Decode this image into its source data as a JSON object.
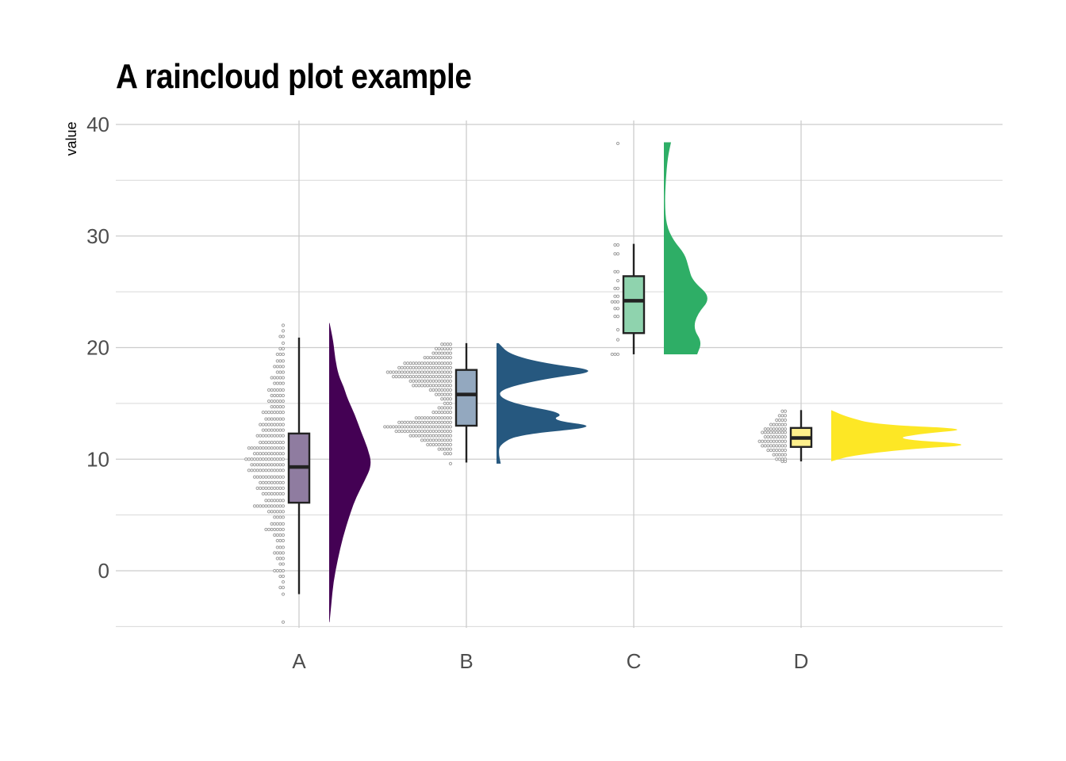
{
  "chart_data": {
    "type": "raincloud",
    "title": "A raincloud plot example",
    "xlabel": "",
    "ylabel": "value",
    "categories": [
      "A",
      "B",
      "C",
      "D"
    ],
    "yticks": [
      0,
      10,
      20,
      30,
      40
    ],
    "ylim": [
      -5,
      40
    ],
    "grid": true,
    "legend": "none",
    "colors": {
      "A": {
        "cloud": "#440154",
        "box": "#8F7CA0"
      },
      "B": {
        "cloud": "#26587F",
        "box": "#93A8BF"
      },
      "C": {
        "cloud": "#2EAE66",
        "box": "#8FD3AE"
      },
      "D": {
        "cloud": "#FDE725",
        "box": "#FDEF8C"
      },
      "points": "#9e9e9e",
      "grid": "#d9d9d9"
    },
    "series": [
      {
        "group": "A",
        "box": {
          "whisker_low": -2.1,
          "q1": 6.1,
          "median": 9.3,
          "q3": 12.3,
          "whisker_high": 20.9
        },
        "min": -4.6,
        "max": 22.2,
        "density": [
          [
            -4.6,
            0.01
          ],
          [
            -3,
            0.05
          ],
          [
            -1,
            0.1
          ],
          [
            1,
            0.2
          ],
          [
            3,
            0.32
          ],
          [
            5,
            0.48
          ],
          [
            6.5,
            0.62
          ],
          [
            8,
            0.82
          ],
          [
            9.5,
            1.0
          ],
          [
            11,
            0.9
          ],
          [
            12.5,
            0.74
          ],
          [
            14,
            0.6
          ],
          [
            15.5,
            0.42
          ],
          [
            16.5,
            0.34
          ],
          [
            17.5,
            0.22
          ],
          [
            19,
            0.14
          ],
          [
            20.5,
            0.1
          ],
          [
            22.2,
            0.01
          ]
        ]
      },
      {
        "group": "B",
        "box": {
          "whisker_low": 9.7,
          "q1": 13.0,
          "median": 15.8,
          "q3": 18.0,
          "whisker_high": 20.4
        },
        "min": 9.6,
        "max": 20.4,
        "density": [
          [
            9.6,
            0.04
          ],
          [
            10.5,
            0.02
          ],
          [
            11.3,
            0.03
          ],
          [
            12.2,
            0.2
          ],
          [
            12.9,
            1.0
          ],
          [
            13.5,
            0.5
          ],
          [
            14.1,
            0.65
          ],
          [
            14.9,
            0.2
          ],
          [
            15.6,
            0.02
          ],
          [
            16.3,
            0.05
          ],
          [
            17.2,
            0.45
          ],
          [
            17.9,
            1.0
          ],
          [
            18.6,
            0.45
          ],
          [
            19.4,
            0.12
          ],
          [
            20.4,
            0.02
          ]
        ]
      },
      {
        "group": "C",
        "box": {
          "whisker_low": 19.4,
          "q1": 21.3,
          "median": 24.2,
          "q3": 26.4,
          "whisker_high": 29.3
        },
        "min": 19.4,
        "max": 38.4,
        "density": [
          [
            19.4,
            0.7
          ],
          [
            20.5,
            0.8
          ],
          [
            21.7,
            0.62
          ],
          [
            23,
            0.7
          ],
          [
            24.5,
            1.0
          ],
          [
            26,
            0.6
          ],
          [
            27.2,
            0.52
          ],
          [
            28.4,
            0.44
          ],
          [
            29.6,
            0.2
          ],
          [
            31,
            0.05
          ],
          [
            33,
            0.02
          ],
          [
            35,
            0.04
          ],
          [
            37,
            0.08
          ],
          [
            38.4,
            0.15
          ]
        ]
      },
      {
        "group": "D",
        "box": {
          "whisker_low": 9.8,
          "q1": 11.1,
          "median": 11.9,
          "q3": 12.8,
          "whisker_high": 14.4
        },
        "min": 9.8,
        "max": 14.4,
        "density": [
          [
            9.8,
            0.0
          ],
          [
            10.3,
            0.13
          ],
          [
            10.9,
            0.5
          ],
          [
            11.3,
            1.0
          ],
          [
            11.8,
            0.4
          ],
          [
            12.3,
            0.6
          ],
          [
            12.7,
            0.95
          ],
          [
            13.1,
            0.3
          ],
          [
            13.8,
            0.1
          ],
          [
            14.4,
            0.0
          ]
        ]
      }
    ],
    "dot_bins": {
      "A": [
        [
          22,
          1
        ],
        [
          21.5,
          1
        ],
        [
          21,
          2
        ],
        [
          20.4,
          1
        ],
        [
          19.9,
          2
        ],
        [
          19.4,
          3
        ],
        [
          18.8,
          3
        ],
        [
          18.3,
          4
        ],
        [
          17.8,
          3
        ],
        [
          17.3,
          5
        ],
        [
          16.8,
          4
        ],
        [
          16.2,
          6
        ],
        [
          15.7,
          5
        ],
        [
          15.2,
          6
        ],
        [
          14.7,
          5
        ],
        [
          14.2,
          8
        ],
        [
          13.6,
          7
        ],
        [
          13.1,
          9
        ],
        [
          12.6,
          8
        ],
        [
          12.1,
          10
        ],
        [
          11.5,
          9
        ],
        [
          11,
          13
        ],
        [
          10.5,
          11
        ],
        [
          10,
          14
        ],
        [
          9.5,
          12
        ],
        [
          9,
          13
        ],
        [
          8.4,
          11
        ],
        [
          7.9,
          9
        ],
        [
          7.4,
          10
        ],
        [
          6.9,
          8
        ],
        [
          6.3,
          7
        ],
        [
          5.8,
          11
        ],
        [
          5.3,
          6
        ],
        [
          4.8,
          4
        ],
        [
          4.2,
          5
        ],
        [
          3.7,
          7
        ],
        [
          3.2,
          4
        ],
        [
          2.7,
          3
        ],
        [
          2.1,
          3
        ],
        [
          1.6,
          4
        ],
        [
          1.1,
          3
        ],
        [
          0.6,
          2
        ],
        [
          0,
          4
        ],
        [
          -0.5,
          2
        ],
        [
          -1,
          1
        ],
        [
          -1.5,
          2
        ],
        [
          -2.1,
          1
        ],
        [
          -4.6,
          1
        ]
      ],
      "B": [
        [
          20.3,
          4
        ],
        [
          19.9,
          6
        ],
        [
          19.5,
          7
        ],
        [
          19.1,
          10
        ],
        [
          18.6,
          17
        ],
        [
          18.2,
          19
        ],
        [
          17.8,
          23
        ],
        [
          17.4,
          21
        ],
        [
          17,
          15
        ],
        [
          16.6,
          14
        ],
        [
          16.2,
          8
        ],
        [
          15.8,
          6
        ],
        [
          15.4,
          4
        ],
        [
          15,
          3
        ],
        [
          14.6,
          5
        ],
        [
          14.2,
          7
        ],
        [
          13.7,
          13
        ],
        [
          13.3,
          19
        ],
        [
          12.9,
          24
        ],
        [
          12.5,
          20
        ],
        [
          12.1,
          15
        ],
        [
          11.7,
          11
        ],
        [
          11.3,
          9
        ],
        [
          10.9,
          5
        ],
        [
          10.5,
          3
        ],
        [
          9.6,
          1
        ]
      ],
      "C": [
        [
          38.3,
          1
        ],
        [
          29.2,
          2
        ],
        [
          28.4,
          2
        ],
        [
          26.8,
          2
        ],
        [
          26,
          1
        ],
        [
          25.3,
          2
        ],
        [
          24.6,
          2
        ],
        [
          24.1,
          3
        ],
        [
          23.5,
          2
        ],
        [
          22.8,
          2
        ],
        [
          21.6,
          1
        ],
        [
          20.7,
          1
        ],
        [
          19.4,
          3
        ]
      ],
      "D": [
        [
          14.3,
          2
        ],
        [
          13.9,
          3
        ],
        [
          13.5,
          4
        ],
        [
          13.1,
          6
        ],
        [
          12.7,
          8
        ],
        [
          12.4,
          9
        ],
        [
          12,
          8
        ],
        [
          11.6,
          10
        ],
        [
          11.2,
          9
        ],
        [
          10.8,
          7
        ],
        [
          10.4,
          5
        ],
        [
          10,
          4
        ],
        [
          9.8,
          2
        ]
      ]
    }
  }
}
